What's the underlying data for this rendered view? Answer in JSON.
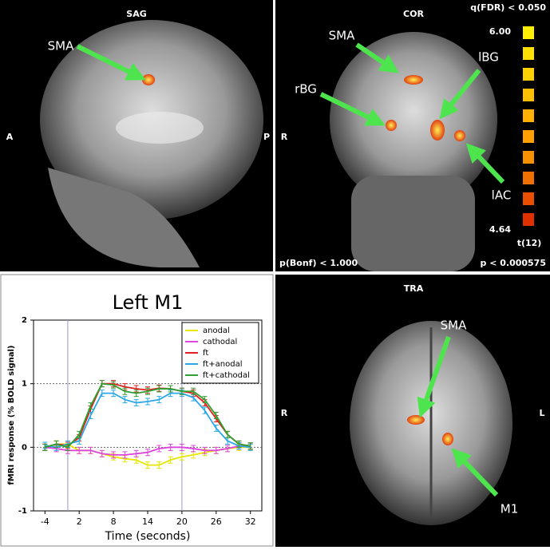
{
  "panels": {
    "sag": {
      "title": "SAG",
      "label": "SMA",
      "left": "A",
      "right": "P"
    },
    "cor": {
      "title": "COR",
      "fdr": "q(FDR) < 0.050",
      "labels": [
        "SMA",
        "lBG",
        "rBG",
        "lAC"
      ],
      "side": "R",
      "bonf": "p(Bonf) < 1.000",
      "p": "p < 0.000575",
      "scale_max": "6.00",
      "scale_min": "4.64",
      "stat": "t(12)"
    },
    "tra": {
      "title": "TRA",
      "labels": [
        "SMA",
        "M1"
      ],
      "left": "R",
      "right": "L"
    }
  },
  "chart_data": {
    "type": "line",
    "title": "Left M1",
    "x_label": "Time (seconds)",
    "y_label": "fMRI response (% BOLD signal)",
    "x": [
      -4,
      -2,
      0,
      2,
      4,
      6,
      8,
      10,
      12,
      14,
      16,
      18,
      20,
      22,
      24,
      26,
      28,
      30,
      32
    ],
    "series": [
      {
        "name": "anodal",
        "color": "#e6e600",
        "error": 0.05,
        "values": [
          0.0,
          0.05,
          0.05,
          -0.05,
          -0.05,
          -0.1,
          -0.15,
          -0.18,
          -0.2,
          -0.28,
          -0.28,
          -0.2,
          -0.15,
          -0.12,
          -0.08,
          -0.05,
          -0.02,
          0.0,
          0.0
        ]
      },
      {
        "name": "cathodal",
        "color": "#dd44dd",
        "error": 0.05,
        "values": [
          0.0,
          -0.02,
          -0.05,
          -0.05,
          -0.05,
          -0.1,
          -0.12,
          -0.12,
          -0.1,
          -0.08,
          -0.02,
          0.0,
          0.0,
          -0.02,
          -0.05,
          -0.05,
          -0.02,
          0.02,
          0.02
        ]
      },
      {
        "name": "ft",
        "color": "#e02020",
        "error": 0.05,
        "values": [
          0.0,
          0.05,
          0.03,
          0.15,
          0.6,
          1.0,
          1.0,
          0.95,
          0.92,
          0.9,
          0.93,
          0.92,
          0.88,
          0.85,
          0.7,
          0.45,
          0.2,
          0.05,
          0.02
        ]
      },
      {
        "name": "ft+anodal",
        "color": "#2aa8e8",
        "error": 0.05,
        "values": [
          0.03,
          0.0,
          0.05,
          0.1,
          0.5,
          0.85,
          0.85,
          0.75,
          0.7,
          0.72,
          0.75,
          0.85,
          0.85,
          0.78,
          0.58,
          0.3,
          0.1,
          0.02,
          0.0
        ]
      },
      {
        "name": "ft+cathodal",
        "color": "#30a030",
        "error": 0.05,
        "values": [
          0.0,
          0.05,
          0.0,
          0.2,
          0.65,
          1.0,
          0.98,
          0.88,
          0.85,
          0.88,
          0.92,
          0.92,
          0.88,
          0.88,
          0.75,
          0.5,
          0.2,
          0.05,
          0.02
        ]
      }
    ],
    "xlim": [
      -6,
      34
    ],
    "ylim": [
      -1,
      2
    ],
    "xticks": [
      -4,
      2,
      8,
      14,
      20,
      26,
      32
    ],
    "yticks": [
      -1,
      0,
      1,
      2
    ],
    "vlines": [
      0,
      20
    ],
    "hlines": [
      0,
      1
    ],
    "legend": "upper right"
  }
}
